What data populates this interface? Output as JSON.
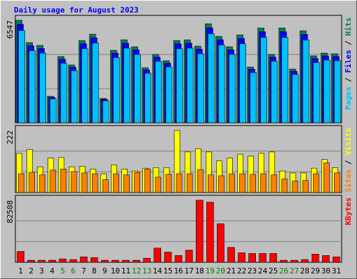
{
  "title": "Daily usage for August 2023",
  "legend_separator": " / ",
  "chart_data": [
    {
      "type": "bar",
      "ylim": [
        0,
        6547
      ],
      "yticks": [
        6547
      ],
      "series": [
        {
          "name": "Hits",
          "color": "#00805c",
          "values": [
            6547,
            5118,
            4940,
            1691,
            4228,
            3694,
            5252,
            5652,
            1558,
            4628,
            5296,
            4851,
            3516,
            4362,
            3961,
            5252,
            5296,
            4895,
            6320,
            5519,
            4851,
            5608,
            3560,
            6053,
            4362,
            6053,
            3427,
            5875,
            4273,
            4450,
            4406
          ]
        },
        {
          "name": "Files",
          "color": "#0000ff",
          "values": [
            6285,
            4913,
            4742,
            1623,
            4059,
            3546,
            5042,
            5426,
            1496,
            4443,
            5084,
            4657,
            3375,
            4188,
            3803,
            5042,
            5084,
            4699,
            6067,
            5298,
            4657,
            5384,
            3418,
            5811,
            4188,
            5811,
            3290,
            5640,
            4102,
            4272,
            4230
          ]
        },
        {
          "name": "Pages",
          "color": "#00c0ff",
          "values": [
            5892,
            4606,
            4446,
            1522,
            3805,
            3325,
            4727,
            5087,
            1402,
            4165,
            4766,
            4366,
            3164,
            3926,
            3565,
            4727,
            4766,
            4406,
            5688,
            4967,
            4366,
            5047,
            3204,
            5448,
            3926,
            5448,
            3084,
            5288,
            3846,
            4005,
            3965
          ]
        }
      ]
    },
    {
      "type": "bar",
      "ylim": [
        0,
        222
      ],
      "yticks": [
        222
      ],
      "series": [
        {
          "name": "Visits",
          "color": "#ffff00",
          "values": [
            140,
            154,
            92,
            123,
            125,
            92,
            94,
            84,
            67,
            99,
            84,
            77,
            87,
            89,
            89,
            222,
            145,
            157,
            145,
            113,
            123,
            137,
            130,
            140,
            145,
            77,
            70,
            70,
            87,
            118,
            89
          ]
        },
        {
          "name": "Sites",
          "color": "#ff8000",
          "values": [
            67,
            72,
            63,
            80,
            84,
            75,
            70,
            67,
            46,
            67,
            63,
            72,
            84,
            55,
            65,
            67,
            67,
            82,
            63,
            60,
            67,
            67,
            65,
            67,
            63,
            48,
            41,
            43,
            67,
            106,
            70
          ]
        }
      ]
    },
    {
      "type": "bar",
      "ylim": [
        0,
        82508
      ],
      "yticks": [
        82508
      ],
      "categories": [
        "1",
        "2",
        "3",
        "4",
        "5",
        "6",
        "7",
        "8",
        "9",
        "10",
        "11",
        "12",
        "13",
        "14",
        "15",
        "16",
        "17",
        "18",
        "19",
        "20",
        "21",
        "22",
        "23",
        "24",
        "25",
        "26",
        "27",
        "28",
        "29",
        "30",
        "31"
      ],
      "category_colors": [
        "#000000",
        "#000000",
        "#000000",
        "#000000",
        "#008000",
        "#008000",
        "#000000",
        "#000000",
        "#000000",
        "#000000",
        "#000000",
        "#008000",
        "#008000",
        "#000000",
        "#000000",
        "#000000",
        "#000000",
        "#000000",
        "#008000",
        "#008000",
        "#000000",
        "#000000",
        "#000000",
        "#000000",
        "#000000",
        "#008000",
        "#008000",
        "#000000",
        "#000000",
        "#000000",
        "#000000"
      ],
      "series": [
        {
          "name": "KBytes",
          "color": "#ff0000",
          "values": [
            14352,
            2691,
            2691,
            2691,
            4485,
            3588,
            7176,
            6279,
            2691,
            2691,
            2691,
            2691,
            5382,
            18837,
            13455,
            8970,
            16146,
            82508,
            79832,
            51129,
            19734,
            12558,
            11661,
            11661,
            11661,
            2691,
            2691,
            3588,
            10764,
            8970,
            7176
          ]
        }
      ]
    }
  ]
}
